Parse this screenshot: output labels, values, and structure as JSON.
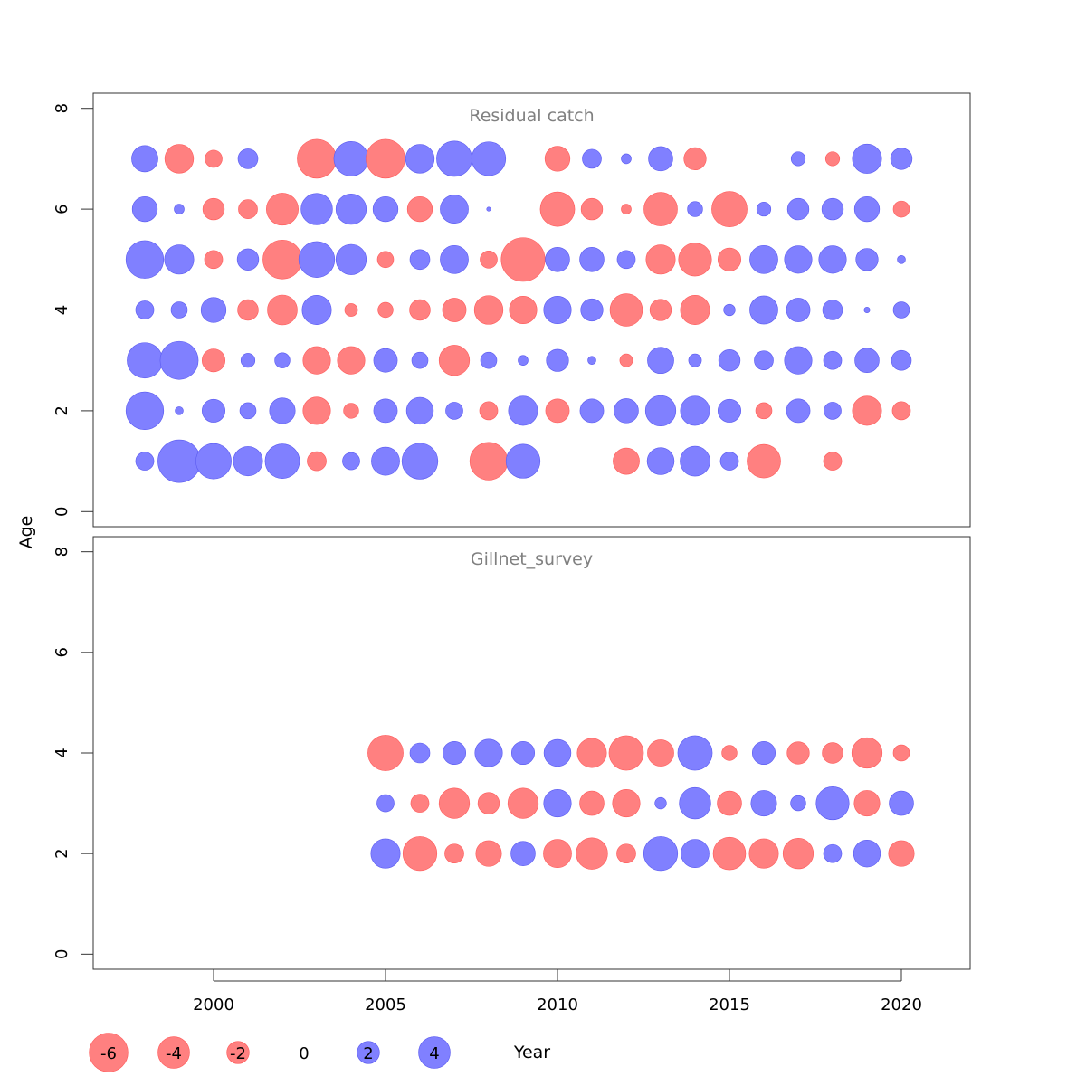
{
  "chart_data": {
    "type": "scatter",
    "ylabel": "Age",
    "xlabel": "Year",
    "x_ticks": [
      2000,
      2005,
      2010,
      2015,
      2020
    ],
    "y_ticks": [
      0,
      2,
      4,
      6,
      8
    ],
    "xlim": [
      1996.5,
      2022
    ],
    "ylim": [
      -0.3,
      8.3
    ],
    "colors": {
      "negative": "#ff8080",
      "positive": "#8080ff",
      "negative_stroke": "#ff5a5a",
      "positive_stroke": "#5a5af0"
    },
    "legend": {
      "values": [
        -6,
        -4,
        -2,
        0,
        2,
        4
      ],
      "labels": [
        "-6",
        "-4",
        "-2",
        "0",
        "2",
        "4"
      ]
    },
    "panels": [
      {
        "title": "Residual catch",
        "years": [
          1998,
          1999,
          2000,
          2001,
          2002,
          2003,
          2004,
          2005,
          2006,
          2007,
          2008,
          2009,
          2010,
          2011,
          2012,
          2013,
          2014,
          2015,
          2016,
          2017,
          2018,
          2019,
          2020
        ],
        "ages": [
          1,
          2,
          3,
          4,
          5,
          6,
          7
        ],
        "residuals": [
          [
            1.0,
            5.5,
            3.8,
            2.6,
            3.6,
            -1.1,
            0.9,
            2.4,
            3.9,
            null,
            -4.3,
            3.5,
            null,
            null,
            -2.1,
            2.2,
            2.7,
            1.0,
            -3.4,
            null,
            -1.0,
            null,
            null
          ],
          [
            4.3,
            0.2,
            1.6,
            0.8,
            2.0,
            -2.3,
            -0.7,
            1.7,
            2.2,
            0.9,
            -1.0,
            2.6,
            -1.7,
            1.7,
            1.8,
            2.8,
            2.6,
            1.6,
            -0.8,
            1.7,
            0.9,
            -2.6,
            -1.0
          ],
          [
            3.8,
            4.4,
            -1.6,
            0.6,
            0.7,
            -2.3,
            -2.3,
            1.7,
            0.8,
            -2.8,
            0.8,
            0.3,
            1.5,
            0.2,
            -0.5,
            2.1,
            0.5,
            1.4,
            1.1,
            2.3,
            1.0,
            1.8,
            1.2
          ],
          [
            1.0,
            0.8,
            1.9,
            -1.3,
            -2.7,
            2.6,
            -0.5,
            -0.7,
            -1.3,
            -1.7,
            -2.5,
            -2.3,
            2.3,
            1.5,
            -3.2,
            -1.4,
            -2.6,
            0.4,
            2.4,
            1.7,
            1.2,
            0.1,
            0.8
          ],
          [
            4.3,
            2.6,
            -1.0,
            1.4,
            -4.6,
            3.9,
            2.8,
            -0.8,
            1.2,
            2.4,
            -0.9,
            -5.8,
            1.8,
            1.8,
            1.0,
            -2.6,
            -3.3,
            -1.6,
            2.4,
            2.3,
            2.3,
            1.5,
            0.2
          ],
          [
            1.9,
            0.3,
            -1.4,
            -1.1,
            -3.1,
            3.0,
            2.8,
            1.9,
            -1.9,
            2.4,
            0.05,
            null,
            -3.6,
            -1.4,
            -0.3,
            -3.4,
            0.7,
            -3.8,
            0.6,
            1.4,
            1.4,
            1.9,
            -0.8
          ],
          [
            2.1,
            -2.5,
            -0.9,
            1.2,
            null,
            -4.6,
            3.6,
            -4.6,
            2.5,
            3.8,
            3.5,
            null,
            -1.9,
            1.1,
            0.3,
            1.8,
            -1.5,
            null,
            null,
            0.6,
            -0.6,
            2.6,
            1.4
          ]
        ]
      },
      {
        "title": "Gillnet_survey",
        "years": [
          1998,
          1999,
          2000,
          2001,
          2002,
          2003,
          2004,
          2005,
          2006,
          2007,
          2008,
          2009,
          2010,
          2011,
          2012,
          2013,
          2014,
          2015,
          2016,
          2017,
          2018,
          2019,
          2020
        ],
        "ages": [
          2,
          3,
          4
        ],
        "residuals": [
          [
            null,
            null,
            null,
            null,
            null,
            null,
            null,
            2.6,
            -3.5,
            -1.1,
            -2.0,
            1.8,
            -2.4,
            -3.0,
            -1.1,
            3.5,
            2.4,
            -3.2,
            -2.6,
            -2.8,
            1.0,
            2.2,
            -2.0
          ],
          [
            null,
            null,
            null,
            null,
            null,
            null,
            null,
            0.9,
            -1.0,
            -2.8,
            -1.4,
            -2.8,
            2.3,
            -1.8,
            -2.3,
            0.4,
            3.0,
            -1.8,
            2.0,
            0.7,
            3.3,
            -2.0,
            1.8
          ],
          [
            null,
            null,
            null,
            null,
            null,
            null,
            null,
            -3.8,
            1.2,
            1.6,
            2.3,
            1.6,
            2.2,
            -2.6,
            -3.6,
            -2.1,
            3.6,
            -0.7,
            1.6,
            -1.5,
            -1.3,
            -2.8,
            -0.8
          ]
        ]
      }
    ]
  }
}
